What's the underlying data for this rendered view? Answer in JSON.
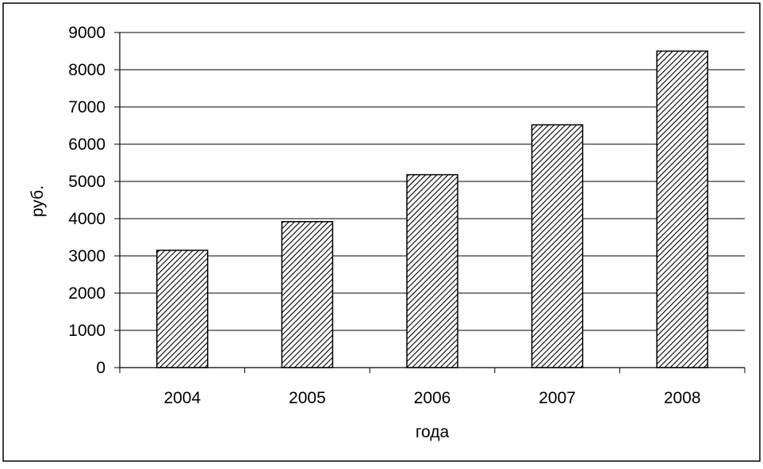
{
  "chart_data": {
    "type": "bar",
    "categories": [
      "2004",
      "2005",
      "2006",
      "2007",
      "2008"
    ],
    "values": [
      3150,
      3920,
      5180,
      6520,
      8500
    ],
    "xlabel": "года",
    "ylabel": "руб.",
    "ylim": [
      0,
      9000
    ],
    "yticks": [
      0,
      1000,
      2000,
      3000,
      4000,
      5000,
      6000,
      7000,
      8000,
      9000
    ],
    "grid": true,
    "legend": "none",
    "bar_fill": "diagonal-hatch",
    "colors": {
      "bar_stroke": "#000000",
      "hatch": "#000000",
      "background": "#ffffff",
      "grid": "#000000"
    }
  }
}
